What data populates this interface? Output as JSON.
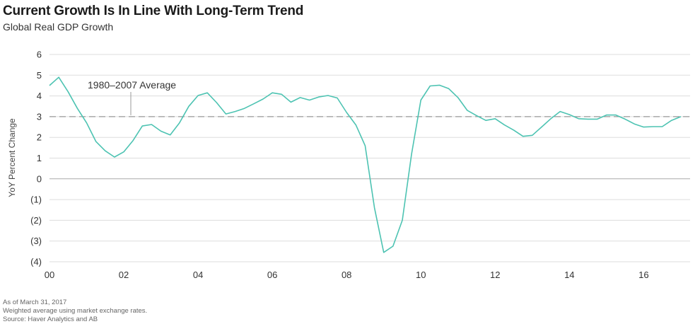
{
  "header": {
    "title": "Current Growth Is In Line With Long-Term Trend",
    "subtitle": "Global Real GDP Growth"
  },
  "chart_data": {
    "type": "line",
    "ylabel": "YoY Percent Change",
    "xlabel": "",
    "xlim": [
      2000.0,
      2017.25
    ],
    "ylim": [
      -4,
      6
    ],
    "yticks": [
      6,
      5,
      4,
      3,
      2,
      1,
      0,
      -1,
      -2,
      -3,
      -4
    ],
    "ytick_labels": [
      "6",
      "5",
      "4",
      "3",
      "2",
      "1",
      "0",
      "(1)",
      "(2)",
      "(3)",
      "(4)"
    ],
    "xticks": [
      2000,
      2002,
      2004,
      2006,
      2008,
      2010,
      2012,
      2014,
      2016
    ],
    "xtick_labels": [
      "00",
      "02",
      "04",
      "06",
      "08",
      "10",
      "12",
      "14",
      "16"
    ],
    "grid": "horizontal",
    "line_color": "#4dc3b2",
    "reference_line": {
      "y": 3.0,
      "label": "1980–2007 Average",
      "style": "dashed",
      "color": "#999999"
    },
    "series": [
      {
        "x": [
          2000.0,
          2000.25,
          2000.5,
          2000.75,
          2001.0,
          2001.25,
          2001.5,
          2001.75,
          2002.0,
          2002.25,
          2002.5,
          2002.75,
          2003.0,
          2003.25,
          2003.5,
          2003.75,
          2004.0,
          2004.25,
          2004.5,
          2004.75,
          2005.0,
          2005.25,
          2005.5,
          2005.75,
          2006.0,
          2006.25,
          2006.5,
          2006.75,
          2007.0,
          2007.25,
          2007.5,
          2007.75,
          2008.0,
          2008.25,
          2008.5,
          2008.75,
          2009.0,
          2009.25,
          2009.5,
          2009.75,
          2010.0,
          2010.25,
          2010.5,
          2010.75,
          2011.0,
          2011.25,
          2011.5,
          2011.75,
          2012.0,
          2012.25,
          2012.5,
          2012.75,
          2013.0,
          2013.25,
          2013.5,
          2013.75,
          2014.0,
          2014.25,
          2014.5,
          2014.75,
          2015.0,
          2015.25,
          2015.5,
          2015.75,
          2016.0,
          2016.25,
          2016.5,
          2016.75,
          2017.0
        ],
        "y": [
          4.5,
          4.9,
          4.2,
          3.4,
          2.7,
          1.8,
          1.35,
          1.05,
          1.3,
          1.85,
          2.55,
          2.62,
          2.3,
          2.12,
          2.7,
          3.5,
          4.02,
          4.15,
          3.68,
          3.13,
          3.25,
          3.4,
          3.62,
          3.85,
          4.15,
          4.08,
          3.7,
          3.92,
          3.8,
          3.95,
          4.02,
          3.9,
          3.2,
          2.6,
          1.6,
          -1.4,
          -3.55,
          -3.25,
          -2.0,
          1.2,
          3.8,
          4.48,
          4.52,
          4.35,
          3.92,
          3.3,
          3.05,
          2.82,
          2.9,
          2.6,
          2.35,
          2.05,
          2.1,
          2.5,
          2.9,
          3.25,
          3.1,
          2.9,
          2.88,
          2.88,
          3.08,
          3.08,
          2.88,
          2.65,
          2.5,
          2.52,
          2.52,
          2.82,
          3.0
        ]
      }
    ]
  },
  "footer": {
    "as_of": "As of March 31, 2017",
    "note": "Weighted average using market exchange rates.",
    "source": "Source: Haver Analytics and AB"
  }
}
